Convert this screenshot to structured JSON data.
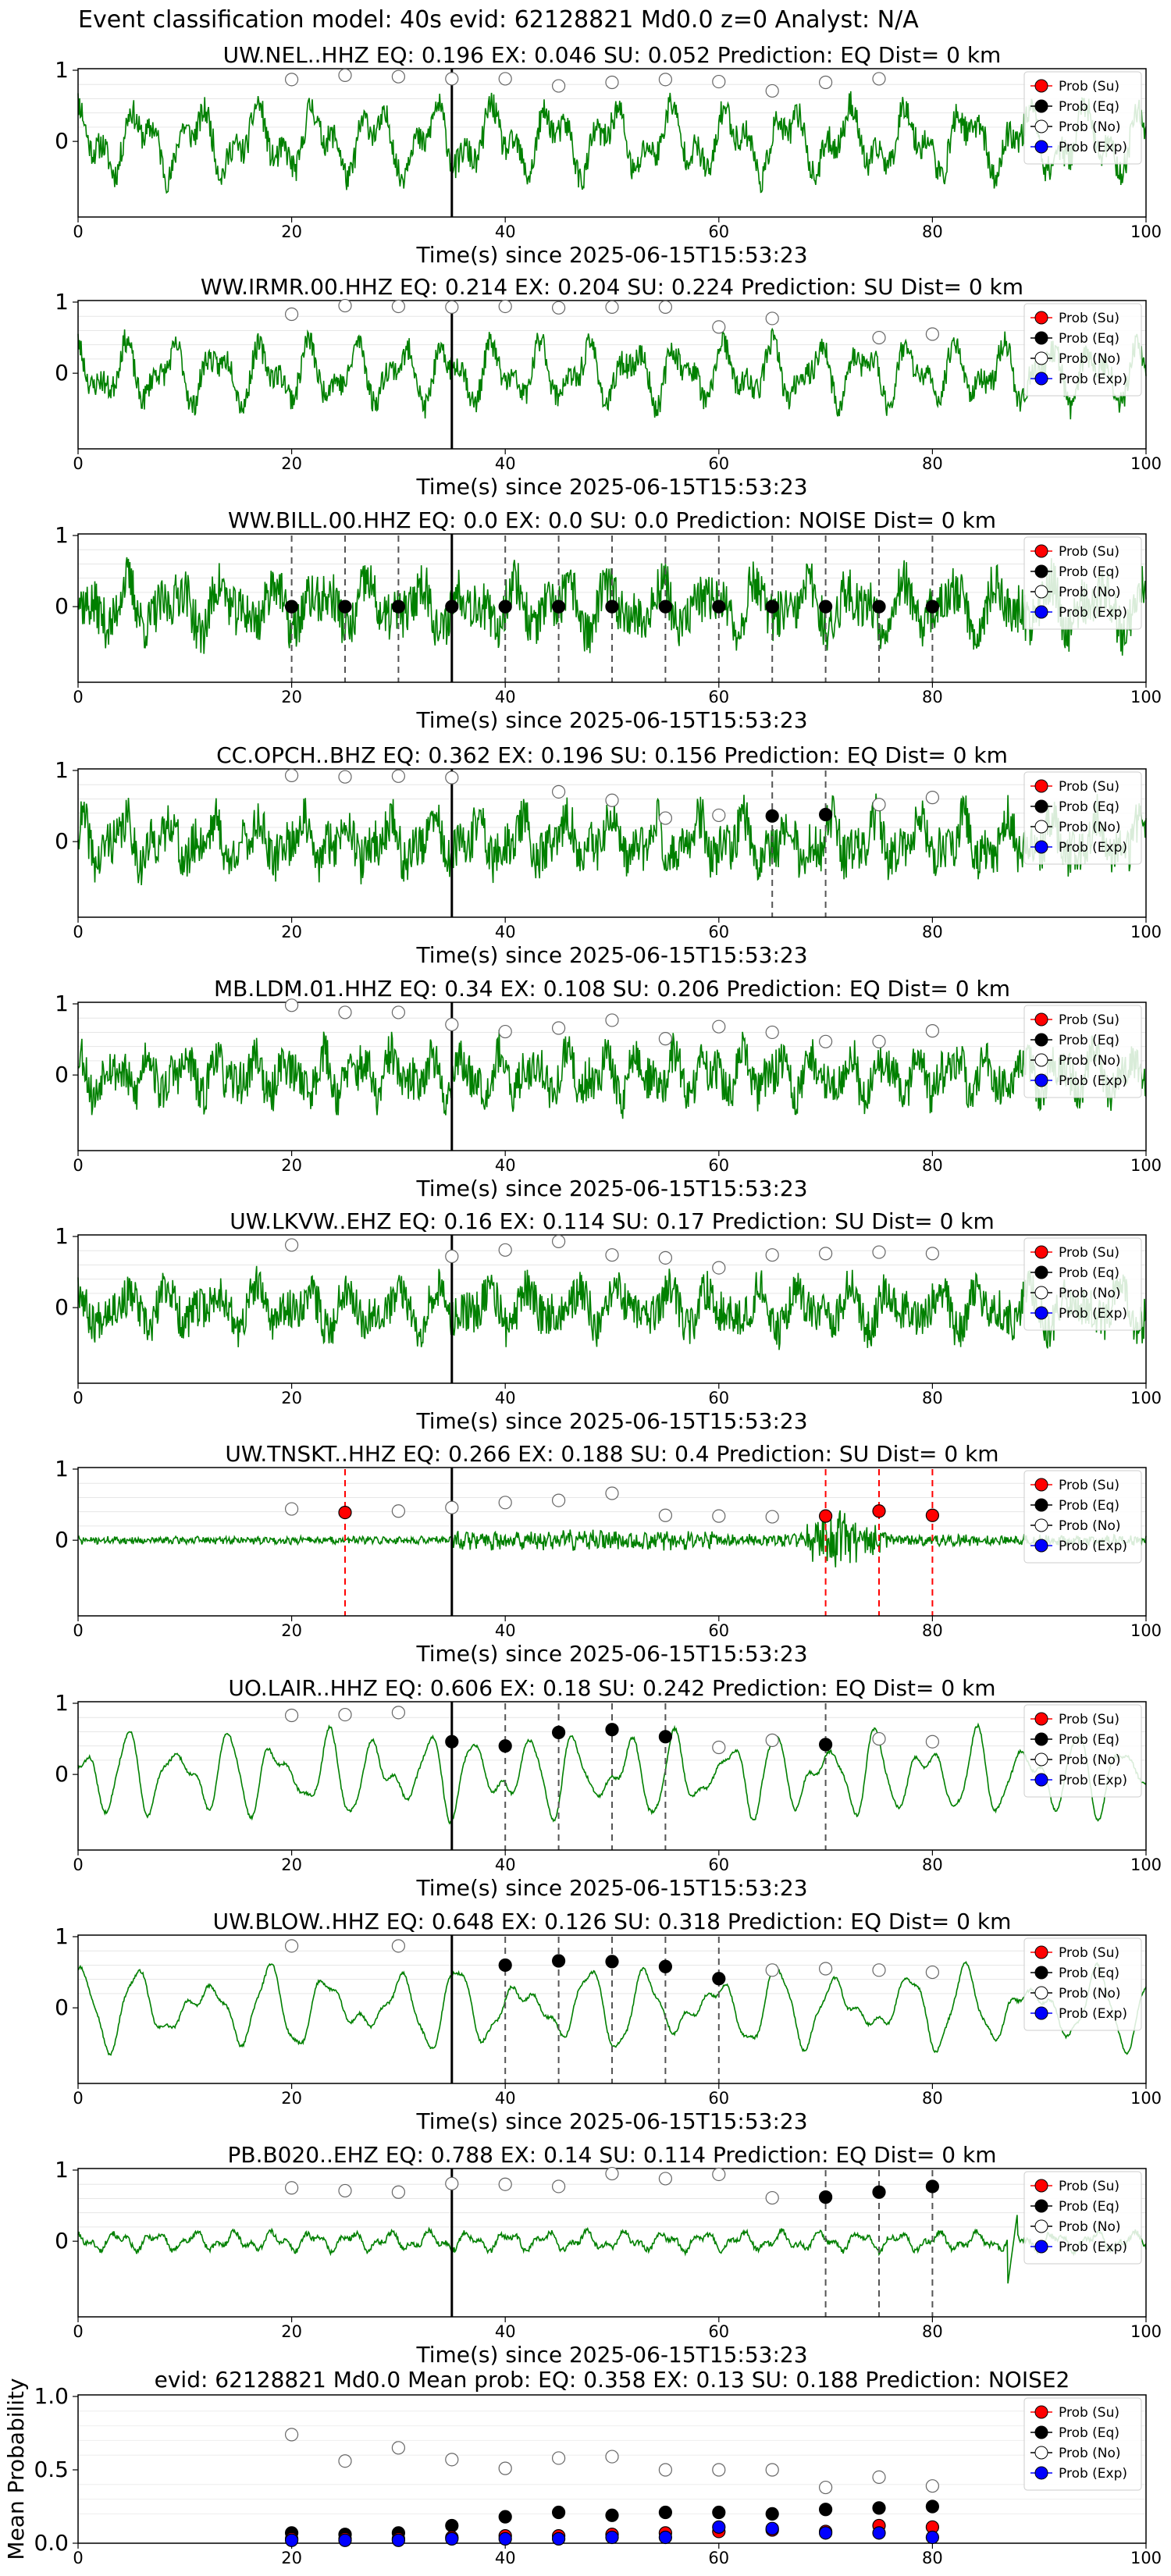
{
  "figure_title": "Event classification model: 40s evid: 62128821 Md0.0 z=0 Analyst: N/A",
  "legend": [
    "Prob (Su)",
    "Prob (Eq)",
    "Prob (No)",
    "Prob (Exp)"
  ],
  "colors": {
    "trace": "#008000",
    "su": "#ff0000",
    "eq": "#000000",
    "no": "#ffffff",
    "exp": "#0000ff",
    "pick_eq": "#555555",
    "pick_su": "#ff0000",
    "origin": "#000000"
  },
  "xlabel": "Time(s) since 2025-06-15T15:53:23",
  "x_ticks": [
    "0",
    "20",
    "40",
    "60",
    "80",
    "100"
  ],
  "y_ticks": [
    "1",
    "0"
  ],
  "chart_data": [
    {
      "type": "line",
      "title": "UW.NEL..HHZ   EQ: 0.196  EX: 0.046  SU: 0.052   Prediction: EQ    Dist= 0 km",
      "station": "UW.NEL..HHZ",
      "prediction": "EQ",
      "xlim": [
        0,
        100
      ],
      "ylim": [
        -1,
        1
      ],
      "origin_time": 35,
      "pick_type": "",
      "picks": [],
      "trace_style": "broadband",
      "trace_amp": 0.85,
      "seed": 11,
      "prob_no": [
        [
          20,
          0.87
        ],
        [
          25,
          0.93
        ],
        [
          30,
          0.91
        ],
        [
          35,
          0.88
        ],
        [
          40,
          0.88
        ],
        [
          45,
          0.78
        ],
        [
          50,
          0.83
        ],
        [
          55,
          0.87
        ],
        [
          60,
          0.84
        ],
        [
          65,
          0.71
        ],
        [
          70,
          0.83
        ],
        [
          75,
          0.88
        ]
      ]
    },
    {
      "type": "line",
      "title": "WW.IRMR.00.HHZ   EQ: 0.214  EX: 0.204  SU: 0.224   Prediction: SU    Dist= 0 km",
      "station": "WW.IRMR.00.HHZ",
      "prediction": "SU",
      "xlim": [
        0,
        100
      ],
      "ylim": [
        -1,
        1
      ],
      "origin_time": 35,
      "pick_type": "",
      "picks": [],
      "trace_style": "broadband",
      "trace_amp": 0.75,
      "seed": 23,
      "prob_no": [
        [
          20,
          0.83
        ],
        [
          25,
          0.95
        ],
        [
          30,
          0.94
        ],
        [
          35,
          0.93
        ],
        [
          40,
          0.94
        ],
        [
          45,
          0.92
        ],
        [
          50,
          0.93
        ],
        [
          55,
          0.93
        ],
        [
          60,
          0.65
        ],
        [
          65,
          0.77
        ],
        [
          75,
          0.5
        ],
        [
          80,
          0.55
        ]
      ]
    },
    {
      "type": "line",
      "title": "WW.BILL.00.HHZ   EQ: 0.0  EX: 0.0  SU: 0.0   Prediction: NOISE    Dist= 0 km",
      "station": "WW.BILL.00.HHZ",
      "prediction": "NOISE",
      "xlim": [
        0,
        100
      ],
      "ylim": [
        -1,
        1
      ],
      "origin_time": 35,
      "pick_type": "eq",
      "picks": [
        20,
        25,
        30,
        35,
        40,
        45,
        50,
        55,
        60,
        65,
        70,
        75,
        80
      ],
      "trace_style": "noisy",
      "trace_amp": 0.9,
      "seed": 37,
      "prob_eq": [
        [
          20,
          0
        ],
        [
          25,
          0
        ],
        [
          30,
          0
        ],
        [
          35,
          0
        ],
        [
          40,
          0
        ],
        [
          45,
          0
        ],
        [
          50,
          0
        ],
        [
          55,
          0
        ],
        [
          60,
          0
        ],
        [
          65,
          0
        ],
        [
          70,
          0
        ],
        [
          75,
          0
        ],
        [
          80,
          0
        ]
      ]
    },
    {
      "type": "line",
      "title": "CC.OPCH..BHZ   EQ: 0.362  EX: 0.196  SU: 0.156   Prediction: EQ    Dist= 0 km",
      "station": "CC.OPCH..BHZ",
      "prediction": "EQ",
      "xlim": [
        0,
        100
      ],
      "ylim": [
        -1,
        1
      ],
      "origin_time": 35,
      "pick_type": "eq",
      "picks": [
        65,
        70
      ],
      "trace_style": "noisy",
      "trace_amp": 0.85,
      "seed": 41,
      "prob_eq": [
        [
          65,
          0.36
        ],
        [
          70,
          0.38
        ]
      ],
      "prob_no": [
        [
          20,
          0.93
        ],
        [
          25,
          0.91
        ],
        [
          30,
          0.92
        ],
        [
          35,
          0.9
        ],
        [
          45,
          0.7
        ],
        [
          50,
          0.58
        ],
        [
          55,
          0.33
        ],
        [
          60,
          0.37
        ],
        [
          75,
          0.52
        ],
        [
          80,
          0.62
        ]
      ]
    },
    {
      "type": "line",
      "title": "MB.LDM.01.HHZ   EQ: 0.34  EX: 0.108  SU: 0.206   Prediction: EQ    Dist= 0 km",
      "station": "MB.LDM.01.HHZ",
      "prediction": "EQ",
      "xlim": [
        0,
        100
      ],
      "ylim": [
        -1,
        1
      ],
      "origin_time": 35,
      "pick_type": "",
      "picks": [],
      "trace_style": "noisy",
      "trace_amp": 0.8,
      "seed": 53,
      "prob_no": [
        [
          20,
          0.98
        ],
        [
          25,
          0.88
        ],
        [
          30,
          0.88
        ],
        [
          35,
          0.71
        ],
        [
          40,
          0.61
        ],
        [
          45,
          0.66
        ],
        [
          50,
          0.77
        ],
        [
          55,
          0.51
        ],
        [
          60,
          0.68
        ],
        [
          65,
          0.6
        ],
        [
          70,
          0.47
        ],
        [
          75,
          0.47
        ],
        [
          80,
          0.62
        ]
      ]
    },
    {
      "type": "line",
      "title": "UW.LKVW..EHZ   EQ: 0.16  EX: 0.114  SU: 0.17   Prediction: SU    Dist= 0 km",
      "station": "UW.LKVW..EHZ",
      "prediction": "SU",
      "xlim": [
        0,
        100
      ],
      "ylim": [
        -1,
        1
      ],
      "origin_time": 35,
      "pick_type": "",
      "picks": [],
      "trace_style": "noisy",
      "trace_amp": 0.75,
      "seed": 67,
      "prob_no": [
        [
          20,
          0.88
        ],
        [
          35,
          0.72
        ],
        [
          40,
          0.81
        ],
        [
          45,
          0.93
        ],
        [
          50,
          0.74
        ],
        [
          55,
          0.7
        ],
        [
          60,
          0.56
        ],
        [
          65,
          0.74
        ],
        [
          70,
          0.76
        ],
        [
          75,
          0.78
        ],
        [
          80,
          0.76
        ]
      ]
    },
    {
      "type": "line",
      "title": "UW.TNSKT..HHZ   EQ: 0.266  EX: 0.188  SU: 0.4   Prediction: SU    Dist= 0 km",
      "station": "UW.TNSKT..HHZ",
      "prediction": "SU",
      "xlim": [
        0,
        100
      ],
      "ylim": [
        -1,
        1
      ],
      "origin_time": 35,
      "pick_type": "su",
      "picks": [
        25,
        70,
        75,
        80
      ],
      "trace_style": "burst",
      "trace_amp": 0.25,
      "seed": 71,
      "prob_su": [
        [
          25,
          0.39
        ],
        [
          70,
          0.34
        ],
        [
          75,
          0.41
        ],
        [
          80,
          0.35
        ]
      ],
      "prob_no": [
        [
          20,
          0.44
        ],
        [
          30,
          0.41
        ],
        [
          35,
          0.46
        ],
        [
          40,
          0.53
        ],
        [
          45,
          0.56
        ],
        [
          50,
          0.66
        ],
        [
          55,
          0.35
        ],
        [
          60,
          0.34
        ],
        [
          65,
          0.33
        ]
      ]
    },
    {
      "type": "line",
      "title": "UO.LAIR..HHZ   EQ: 0.606  EX: 0.18  SU: 0.242   Prediction: EQ    Dist= 0 km",
      "station": "UO.LAIR..HHZ",
      "prediction": "EQ",
      "xlim": [
        0,
        100
      ],
      "ylim": [
        -1,
        1
      ],
      "origin_time": 35,
      "pick_type": "eq",
      "picks": [
        40,
        45,
        50,
        55,
        70
      ],
      "trace_style": "smooth",
      "trace_amp": 0.85,
      "seed": 83,
      "prob_eq": [
        [
          35,
          0.46
        ],
        [
          40,
          0.4
        ],
        [
          45,
          0.59
        ],
        [
          50,
          0.63
        ],
        [
          55,
          0.53
        ],
        [
          70,
          0.42
        ]
      ],
      "prob_no": [
        [
          20,
          0.83
        ],
        [
          25,
          0.84
        ],
        [
          30,
          0.87
        ],
        [
          60,
          0.38
        ],
        [
          65,
          0.48
        ],
        [
          75,
          0.5
        ],
        [
          80,
          0.46
        ]
      ]
    },
    {
      "type": "line",
      "title": "UW.BLOW..HHZ   EQ: 0.648  EX: 0.126  SU: 0.318   Prediction: EQ    Dist= 0 km",
      "station": "UW.BLOW..HHZ",
      "prediction": "EQ",
      "xlim": [
        0,
        100
      ],
      "ylim": [
        -1,
        1
      ],
      "origin_time": 35,
      "pick_type": "eq",
      "picks": [
        40,
        45,
        50,
        55,
        60
      ],
      "trace_style": "smooth",
      "trace_amp": 0.8,
      "seed": 97,
      "prob_eq": [
        [
          40,
          0.6
        ],
        [
          45,
          0.66
        ],
        [
          50,
          0.65
        ],
        [
          55,
          0.58
        ],
        [
          60,
          0.41
        ]
      ],
      "prob_no": [
        [
          20,
          0.87
        ],
        [
          30,
          0.87
        ],
        [
          65,
          0.53
        ],
        [
          70,
          0.55
        ],
        [
          75,
          0.53
        ],
        [
          80,
          0.5
        ]
      ]
    },
    {
      "type": "line",
      "title": "PB.B020..EHZ   EQ: 0.788  EX: 0.14  SU: 0.114   Prediction: EQ    Dist= 0 km",
      "station": "PB.B020..EHZ",
      "prediction": "EQ",
      "xlim": [
        0,
        100
      ],
      "ylim": [
        -1,
        1
      ],
      "origin_time": 35,
      "pick_type": "eq",
      "picks": [
        70,
        75,
        80
      ],
      "trace_style": "quiet",
      "trace_amp": 0.22,
      "seed": 101,
      "prob_eq": [
        [
          70,
          0.62
        ],
        [
          75,
          0.69
        ],
        [
          80,
          0.77
        ]
      ],
      "prob_no": [
        [
          20,
          0.75
        ],
        [
          25,
          0.71
        ],
        [
          30,
          0.69
        ],
        [
          35,
          0.81
        ],
        [
          40,
          0.8
        ],
        [
          45,
          0.77
        ],
        [
          50,
          0.95
        ],
        [
          55,
          0.88
        ],
        [
          60,
          0.94
        ],
        [
          65,
          0.61
        ]
      ]
    },
    {
      "type": "scatter",
      "title": "evid: 62128821  Md0.0   Mean prob:   EQ: 0.358  EX: 0.13  SU: 0.188   Prediction: NOISE2",
      "ylabel": "Mean Probability",
      "xlim": [
        0,
        100
      ],
      "ylim": [
        0,
        1.0
      ],
      "y_ticks": [
        "1.0",
        "0.5",
        "0.0"
      ],
      "prob_no": [
        [
          20,
          0.74
        ],
        [
          25,
          0.56
        ],
        [
          30,
          0.65
        ],
        [
          35,
          0.57
        ],
        [
          40,
          0.51
        ],
        [
          45,
          0.58
        ],
        [
          50,
          0.59
        ],
        [
          55,
          0.5
        ],
        [
          60,
          0.5
        ],
        [
          65,
          0.5
        ],
        [
          70,
          0.38
        ],
        [
          75,
          0.45
        ],
        [
          80,
          0.39
        ]
      ],
      "prob_eq": [
        [
          20,
          0.07
        ],
        [
          25,
          0.06
        ],
        [
          30,
          0.07
        ],
        [
          35,
          0.12
        ],
        [
          40,
          0.18
        ],
        [
          45,
          0.21
        ],
        [
          50,
          0.19
        ],
        [
          55,
          0.21
        ],
        [
          60,
          0.21
        ],
        [
          65,
          0.2
        ],
        [
          70,
          0.23
        ],
        [
          75,
          0.24
        ],
        [
          80,
          0.25
        ]
      ],
      "prob_su": [
        [
          20,
          0.03
        ],
        [
          25,
          0.03
        ],
        [
          30,
          0.03
        ],
        [
          35,
          0.04
        ],
        [
          40,
          0.05
        ],
        [
          45,
          0.05
        ],
        [
          50,
          0.06
        ],
        [
          55,
          0.07
        ],
        [
          60,
          0.08
        ],
        [
          65,
          0.09
        ],
        [
          70,
          0.08
        ],
        [
          75,
          0.12
        ],
        [
          80,
          0.11
        ]
      ],
      "prob_exp": [
        [
          20,
          0.02
        ],
        [
          25,
          0.02
        ],
        [
          30,
          0.02
        ],
        [
          35,
          0.03
        ],
        [
          40,
          0.03
        ],
        [
          45,
          0.03
        ],
        [
          50,
          0.04
        ],
        [
          55,
          0.04
        ],
        [
          60,
          0.11
        ],
        [
          65,
          0.1
        ],
        [
          70,
          0.07
        ],
        [
          75,
          0.07
        ],
        [
          80,
          0.04
        ]
      ]
    }
  ]
}
